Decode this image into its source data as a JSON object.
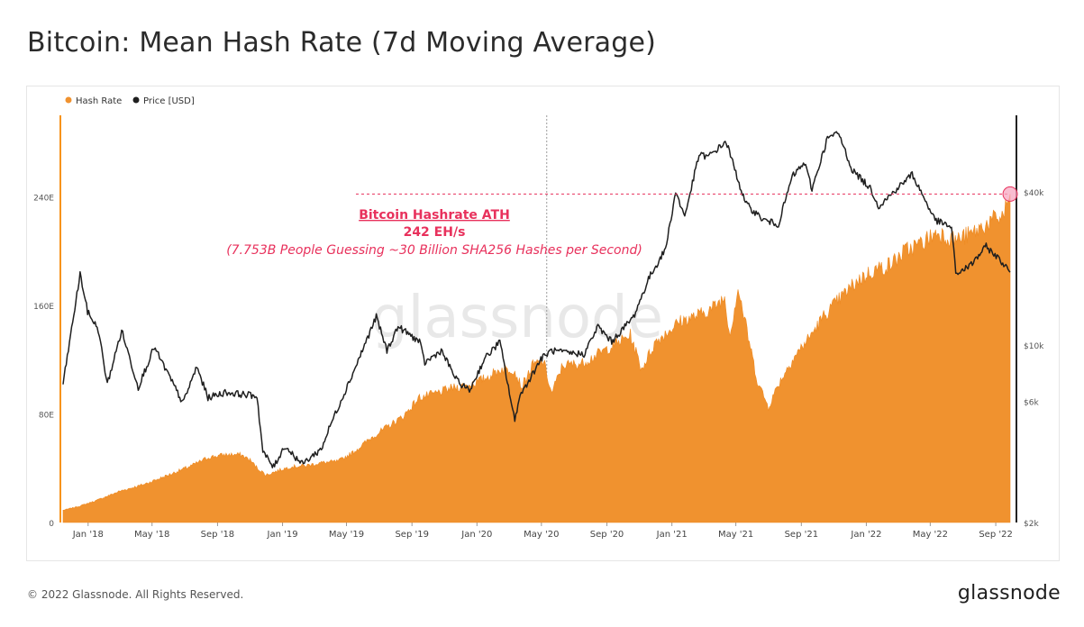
{
  "page": {
    "title": "Bitcoin: Mean Hash Rate (7d Moving Average)",
    "copyright": "© 2022 Glassnode. All Rights Reserved.",
    "brand": "glassnode",
    "watermark": "glassnode"
  },
  "chart_data": {
    "type": "area",
    "legend": {
      "placement": "top-left",
      "items": [
        "Hash Rate",
        "Price [USD]"
      ]
    },
    "colors": {
      "hash_rate": "#f0922f",
      "price": "#1f1f1f",
      "annotation": "#e8315c",
      "axis_left": "#f7931a"
    },
    "x_ticks": [
      "Jan '18",
      "May '18",
      "Sep '18",
      "Jan '19",
      "May '19",
      "Sep '19",
      "Jan '20",
      "May '20",
      "Sep '20",
      "Jan '21",
      "May '21",
      "Sep '21",
      "Jan '22",
      "May '22",
      "Sep '22"
    ],
    "y_left": {
      "unit": "EH/s",
      "ticks": [
        "0",
        "80E",
        "160E",
        "240E"
      ],
      "values": [
        0,
        80,
        160,
        240
      ],
      "ylim": [
        0,
        300
      ]
    },
    "y_right": {
      "scale": "log",
      "ticks": [
        "$2k",
        "$6k",
        "$10k",
        "$40k"
      ],
      "values": [
        2000,
        6000,
        10000,
        40000
      ],
      "ylim": [
        2000,
        80000
      ]
    },
    "annotation": {
      "title": "Bitcoin Hashrate ATH",
      "value": "242 EH/s",
      "note": "(7.753B People Guessing ~30 Billion SHA256 Hashes per Second)",
      "y": 242,
      "date": "2022-09-28"
    },
    "crosshair_date": "2020-05-11",
    "series": [
      {
        "name": "Hash Rate",
        "axis": "left",
        "points": [
          [
            "2017-11-15",
            9
          ],
          [
            "2017-12-15",
            12
          ],
          [
            "2018-01-15",
            16
          ],
          [
            "2018-03-01",
            23
          ],
          [
            "2018-04-15",
            28
          ],
          [
            "2018-06-01",
            35
          ],
          [
            "2018-07-15",
            42
          ],
          [
            "2018-08-15",
            48
          ],
          [
            "2018-09-15",
            50
          ],
          [
            "2018-10-15",
            50
          ],
          [
            "2018-11-01",
            46
          ],
          [
            "2018-11-15",
            40
          ],
          [
            "2018-12-01",
            35
          ],
          [
            "2018-12-15",
            37
          ],
          [
            "2019-01-15",
            41
          ],
          [
            "2019-02-15",
            42
          ],
          [
            "2019-03-15",
            44
          ],
          [
            "2019-04-15",
            45
          ],
          [
            "2019-05-15",
            52
          ],
          [
            "2019-06-15",
            62
          ],
          [
            "2019-07-15",
            70
          ],
          [
            "2019-08-15",
            78
          ],
          [
            "2019-09-15",
            92
          ],
          [
            "2019-10-15",
            95
          ],
          [
            "2019-11-15",
            99
          ],
          [
            "2019-12-15",
            101
          ],
          [
            "2020-01-15",
            106
          ],
          [
            "2020-02-15",
            113
          ],
          [
            "2020-03-10",
            113
          ],
          [
            "2020-03-25",
            100
          ],
          [
            "2020-04-15",
            116
          ],
          [
            "2020-05-05",
            119
          ],
          [
            "2020-05-20",
            95
          ],
          [
            "2020-06-10",
            116
          ],
          [
            "2020-07-15",
            117
          ],
          [
            "2020-08-15",
            124
          ],
          [
            "2020-09-15",
            131
          ],
          [
            "2020-10-15",
            138
          ],
          [
            "2020-11-05",
            113
          ],
          [
            "2020-12-01",
            133
          ],
          [
            "2021-01-15",
            148
          ],
          [
            "2021-02-15",
            152
          ],
          [
            "2021-03-15",
            157
          ],
          [
            "2021-04-10",
            166
          ],
          [
            "2021-04-20",
            138
          ],
          [
            "2021-05-05",
            173
          ],
          [
            "2021-05-20",
            145
          ],
          [
            "2021-06-10",
            105
          ],
          [
            "2021-07-01",
            85
          ],
          [
            "2021-07-20",
            102
          ],
          [
            "2021-08-15",
            120
          ],
          [
            "2021-09-15",
            136
          ],
          [
            "2021-10-15",
            153
          ],
          [
            "2021-11-15",
            166
          ],
          [
            "2021-12-15",
            178
          ],
          [
            "2022-01-15",
            186
          ],
          [
            "2022-02-15",
            190
          ],
          [
            "2022-03-15",
            200
          ],
          [
            "2022-04-15",
            206
          ],
          [
            "2022-05-15",
            214
          ],
          [
            "2022-06-15",
            208
          ],
          [
            "2022-07-15",
            212
          ],
          [
            "2022-08-15",
            220
          ],
          [
            "2022-09-15",
            226
          ],
          [
            "2022-09-28",
            242
          ]
        ]
      },
      {
        "name": "Price [USD]",
        "axis": "right",
        "points": [
          [
            "2017-11-15",
            7000
          ],
          [
            "2017-12-17",
            19000
          ],
          [
            "2017-12-31",
            13500
          ],
          [
            "2018-01-20",
            11500
          ],
          [
            "2018-02-06",
            7000
          ],
          [
            "2018-03-05",
            11400
          ],
          [
            "2018-04-05",
            6800
          ],
          [
            "2018-05-05",
            9800
          ],
          [
            "2018-06-28",
            5900
          ],
          [
            "2018-07-24",
            8200
          ],
          [
            "2018-08-14",
            6200
          ],
          [
            "2018-09-15",
            6500
          ],
          [
            "2018-10-15",
            6400
          ],
          [
            "2018-11-14",
            6300
          ],
          [
            "2018-11-25",
            3800
          ],
          [
            "2018-12-15",
            3300
          ],
          [
            "2019-01-05",
            4000
          ],
          [
            "2019-02-07",
            3400
          ],
          [
            "2019-03-15",
            3900
          ],
          [
            "2019-04-02",
            4900
          ],
          [
            "2019-05-15",
            7900
          ],
          [
            "2019-06-26",
            12900
          ],
          [
            "2019-07-16",
            9500
          ],
          [
            "2019-08-06",
            11800
          ],
          [
            "2019-09-15",
            10300
          ],
          [
            "2019-09-25",
            8500
          ],
          [
            "2019-10-26",
            9500
          ],
          [
            "2019-11-25",
            7200
          ],
          [
            "2019-12-18",
            6600
          ],
          [
            "2020-01-15",
            8800
          ],
          [
            "2020-02-13",
            10300
          ],
          [
            "2020-03-12",
            5000
          ],
          [
            "2020-03-20",
            6200
          ],
          [
            "2020-04-30",
            8800
          ],
          [
            "2020-05-20",
            9500
          ],
          [
            "2020-06-15",
            9300
          ],
          [
            "2020-07-20",
            9200
          ],
          [
            "2020-08-15",
            11800
          ],
          [
            "2020-09-10",
            10300
          ],
          [
            "2020-10-21",
            12900
          ],
          [
            "2020-11-20",
            18500
          ],
          [
            "2020-12-20",
            23800
          ],
          [
            "2021-01-08",
            40000
          ],
          [
            "2021-01-25",
            32000
          ],
          [
            "2021-02-21",
            56000
          ],
          [
            "2021-03-10",
            55000
          ],
          [
            "2021-04-13",
            63000
          ],
          [
            "2021-05-19",
            36000
          ],
          [
            "2021-06-22",
            31000
          ],
          [
            "2021-07-20",
            29800
          ],
          [
            "2021-08-15",
            46000
          ],
          [
            "2021-09-07",
            52000
          ],
          [
            "2021-09-21",
            41000
          ],
          [
            "2021-10-20",
            65000
          ],
          [
            "2021-11-10",
            68000
          ],
          [
            "2021-12-05",
            49000
          ],
          [
            "2022-01-10",
            41000
          ],
          [
            "2022-01-24",
            35000
          ],
          [
            "2022-03-28",
            47000
          ],
          [
            "2022-05-10",
            31000
          ],
          [
            "2022-06-10",
            29000
          ],
          [
            "2022-06-18",
            19000
          ],
          [
            "2022-07-15",
            20500
          ],
          [
            "2022-08-14",
            24400
          ],
          [
            "2022-09-10",
            21500
          ],
          [
            "2022-09-28",
            19300
          ]
        ]
      }
    ]
  }
}
